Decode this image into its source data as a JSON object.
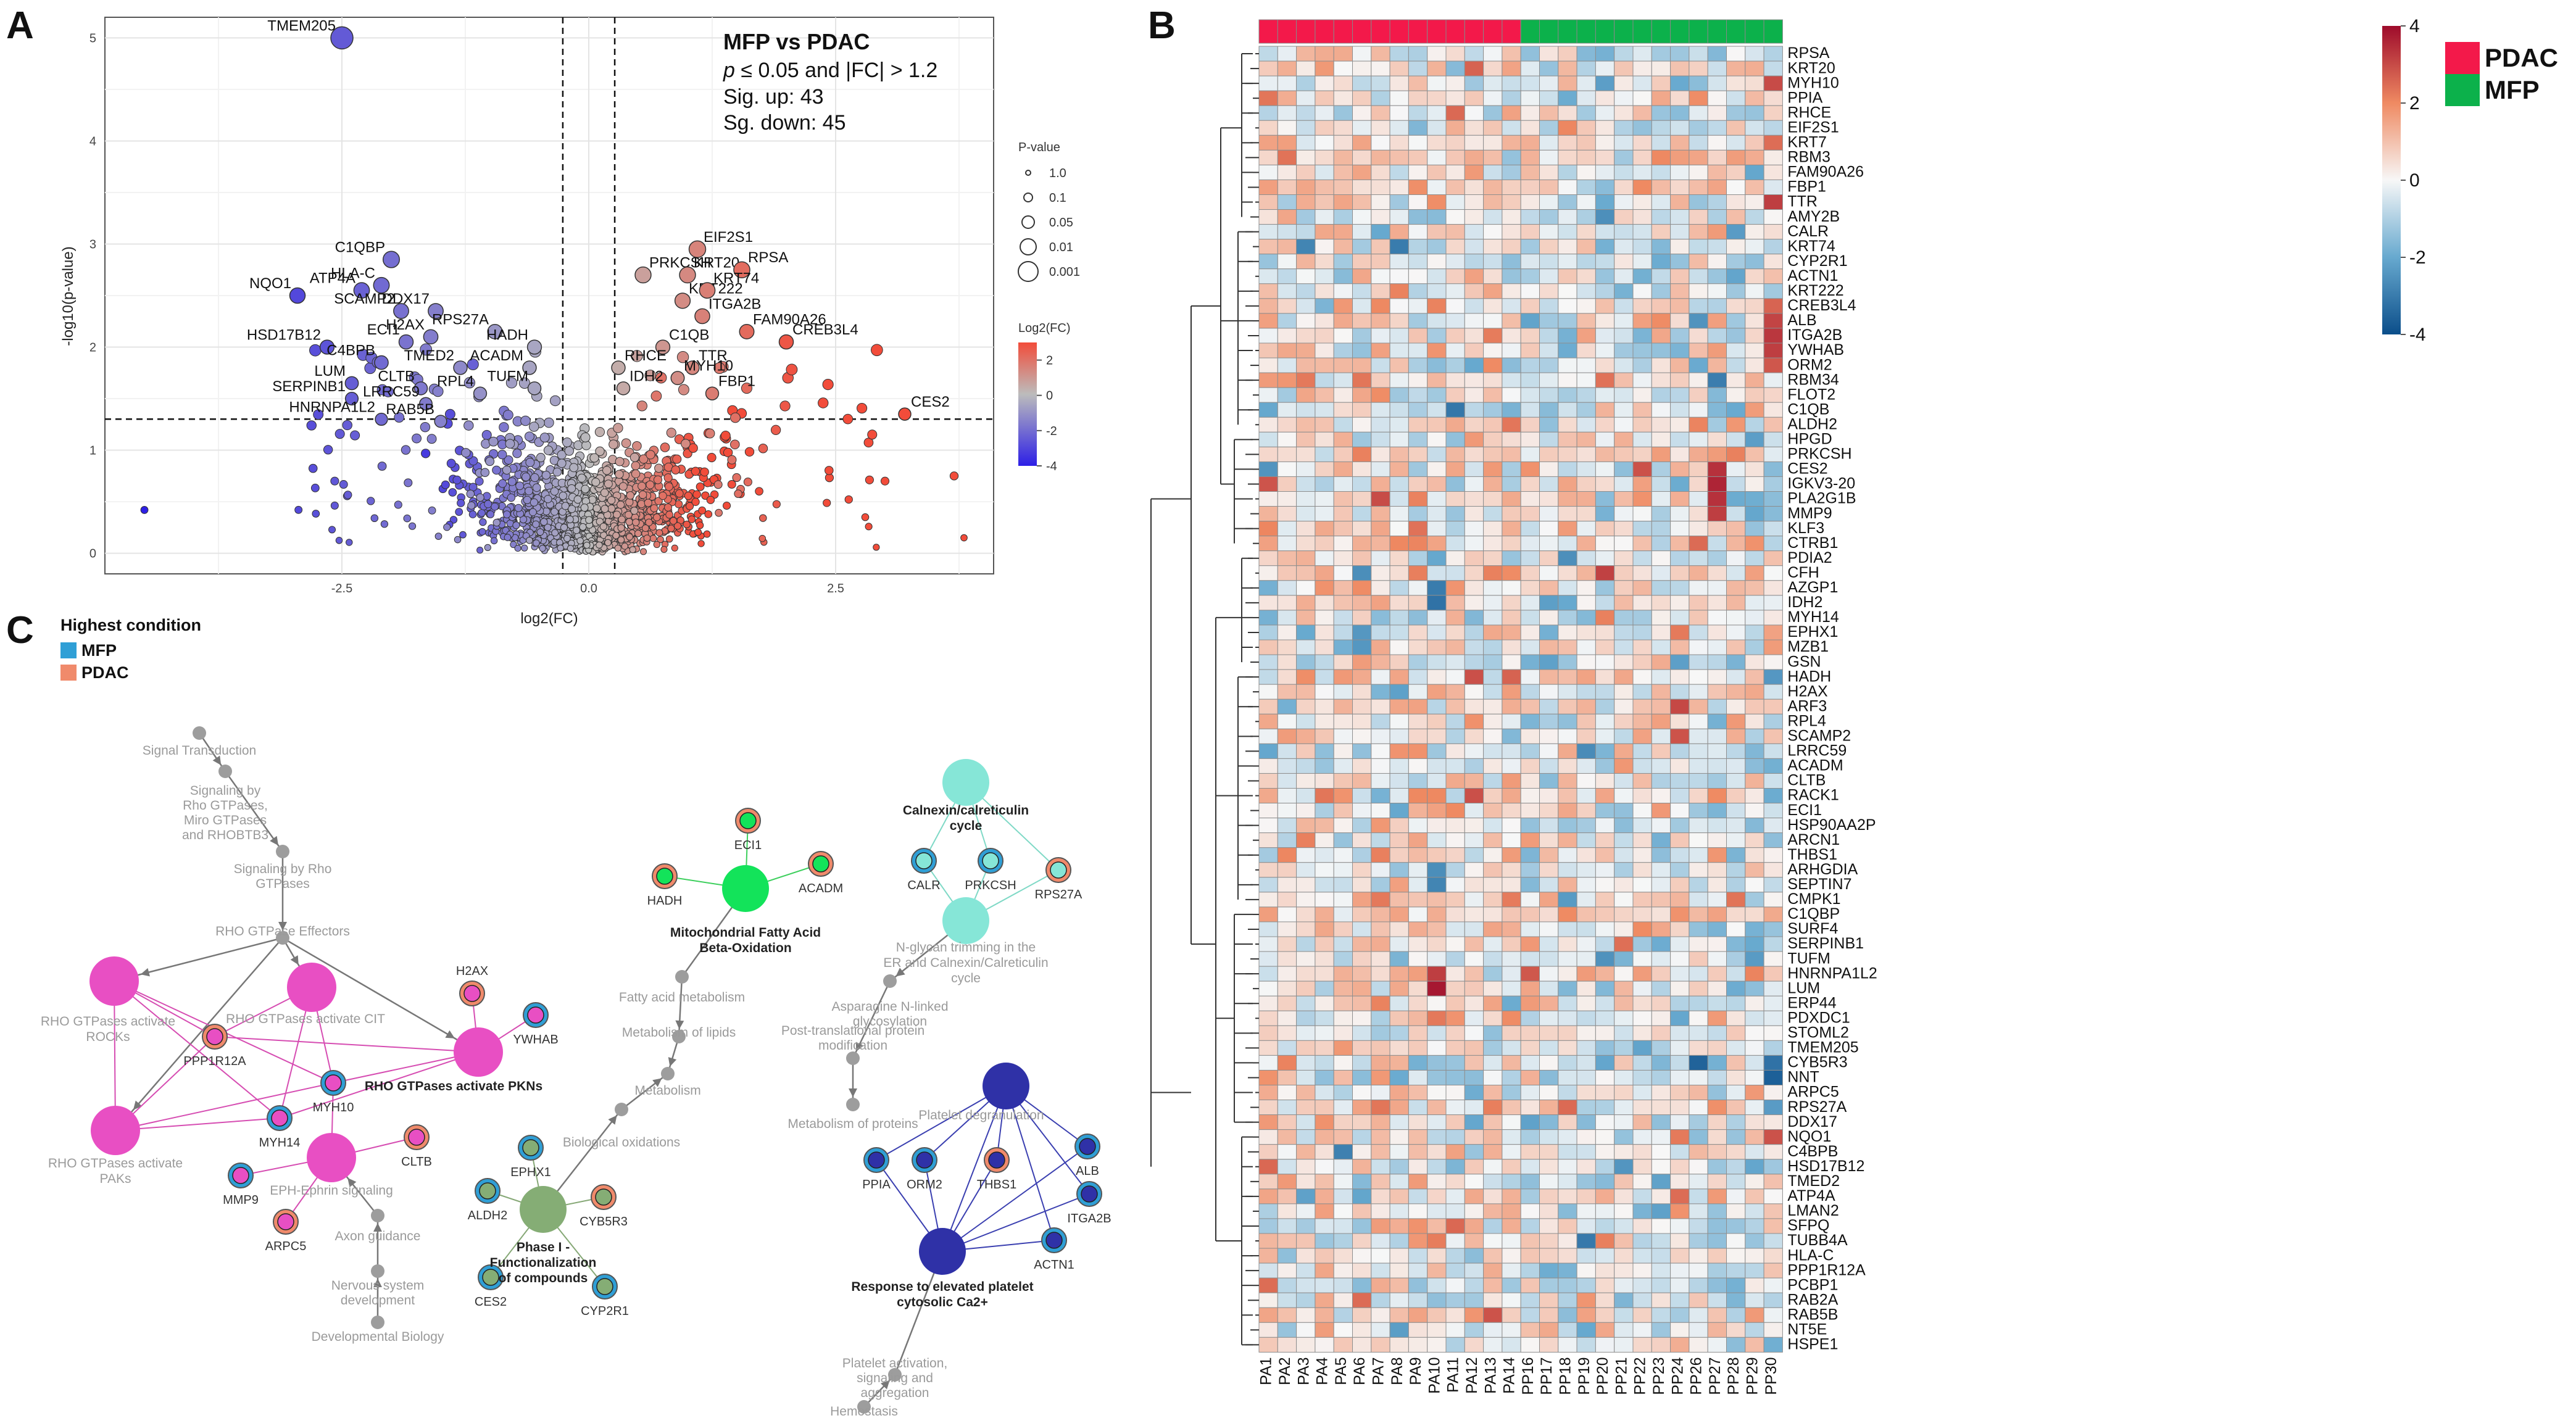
{
  "panels": {
    "a": "A",
    "b": "B",
    "c": "C"
  },
  "colors": {
    "pdac": "#f3194a",
    "mfp": "#0cb14b",
    "hm_low": "#0b4e8a",
    "hm_mid": "#f7f7f7",
    "hm_high": "#9e0b2b",
    "lfc_low": "#2d1fe6",
    "lfc_mid": "#bcbcbc",
    "lfc_high": "#f24c3a",
    "net_rho": "#e84fc3",
    "net_fao": "#13e35a",
    "net_calnexin": "#86e6d7",
    "net_phase1": "#85ad75",
    "net_platelet": "#2f31a7",
    "net_path": "#9d9d9d",
    "cond_mfp": "#2f9fd6",
    "cond_pdac": "#f08a6b"
  },
  "chart_data": [
    {
      "id": "volcano",
      "type": "scatter",
      "title": "MFP vs PDAC",
      "xlabel": "log2(FC)",
      "ylabel": "-log10(p-value)",
      "xlim": [
        -4.9,
        4.1
      ],
      "ylim": [
        -0.2,
        5.2
      ],
      "xticks": [
        "-2.5",
        "0.0",
        "2.5"
      ],
      "yticks": [
        "0",
        "1",
        "2",
        "3",
        "4",
        "5"
      ],
      "xtick_values": [
        -2.5,
        0,
        2.5
      ],
      "ytick_values": [
        0,
        1,
        2,
        3,
        4,
        5
      ],
      "threshold_text": {
        "prefix": "p",
        "rest": " ≤ 0.05 and |FC| > 1.2"
      },
      "sig_up": "Sig. up: 43",
      "sig_down": "Sg. down: 45",
      "thresholds": {
        "fc": 0.263,
        "p": 1.301
      },
      "pvalue_legend": {
        "title": "P-value",
        "labels": [
          "1.0",
          "0.1",
          "0.05",
          "0.01",
          "0.001"
        ]
      },
      "lfc_legend": {
        "title": "Log2(FC)",
        "labels": [
          "2",
          "0",
          "-2",
          "-4"
        ],
        "values": [
          2,
          0,
          -2,
          -4
        ]
      },
      "points": [
        {
          "label": "TMEM205",
          "x": -2.5,
          "y": 5.0
        },
        {
          "label": "C1QBP",
          "x": -2.0,
          "y": 2.85
        },
        {
          "label": "HLA-C",
          "x": -2.1,
          "y": 2.6
        },
        {
          "label": "NQO1",
          "x": -2.95,
          "y": 2.5
        },
        {
          "label": "ATP4A",
          "x": -2.3,
          "y": 2.55
        },
        {
          "label": "SCAMP2",
          "x": -1.9,
          "y": 2.35
        },
        {
          "label": "DDX17",
          "x": -1.55,
          "y": 2.35
        },
        {
          "label": "H2AX",
          "x": -1.6,
          "y": 2.1
        },
        {
          "label": "RPS27A",
          "x": -0.95,
          "y": 2.15
        },
        {
          "label": "HADH",
          "x": -0.55,
          "y": 2.0
        },
        {
          "label": "ECI1",
          "x": -1.85,
          "y": 2.05
        },
        {
          "label": "HSD17B12",
          "x": -2.65,
          "y": 2.0
        },
        {
          "label": "C4BPB",
          "x": -2.1,
          "y": 1.85
        },
        {
          "label": "TMED2",
          "x": -1.3,
          "y": 1.8
        },
        {
          "label": "ACADM",
          "x": -0.6,
          "y": 1.8
        },
        {
          "label": "LUM",
          "x": -2.4,
          "y": 1.65
        },
        {
          "label": "CLTB",
          "x": -1.7,
          "y": 1.6
        },
        {
          "label": "RPL4",
          "x": -1.1,
          "y": 1.55
        },
        {
          "label": "TUFM",
          "x": -0.55,
          "y": 1.6
        },
        {
          "label": "SERPINB1",
          "x": -2.4,
          "y": 1.5
        },
        {
          "label": "LRRC59",
          "x": -1.65,
          "y": 1.45
        },
        {
          "label": "HNRNPA1L2",
          "x": -2.1,
          "y": 1.3
        },
        {
          "label": "RAB5B",
          "x": -1.5,
          "y": 1.28
        },
        {
          "label": "EIF2S1",
          "x": 1.1,
          "y": 2.95
        },
        {
          "label": "PRKCSH",
          "x": 0.55,
          "y": 2.7
        },
        {
          "label": "KRT20",
          "x": 1.0,
          "y": 2.7
        },
        {
          "label": "RPSA",
          "x": 1.55,
          "y": 2.75
        },
        {
          "label": "KRT222",
          "x": 0.95,
          "y": 2.45
        },
        {
          "label": "KRT74",
          "x": 1.2,
          "y": 2.55
        },
        {
          "label": "ITGA2B",
          "x": 1.15,
          "y": 2.3
        },
        {
          "label": "FAM90A26",
          "x": 1.6,
          "y": 2.15
        },
        {
          "label": "CREB3L4",
          "x": 2.0,
          "y": 2.05
        },
        {
          "label": "C1QB",
          "x": 0.75,
          "y": 2.0
        },
        {
          "label": "RHCE",
          "x": 0.3,
          "y": 1.8
        },
        {
          "label": "TTR",
          "x": 1.05,
          "y": 1.8
        },
        {
          "label": "IDH2",
          "x": 0.35,
          "y": 1.6
        },
        {
          "label": "MYH10",
          "x": 0.9,
          "y": 1.7
        },
        {
          "label": "FBP1",
          "x": 1.25,
          "y": 1.55
        },
        {
          "label": "CES2",
          "x": 3.2,
          "y": 1.35
        }
      ]
    },
    {
      "id": "heatmap",
      "type": "heatmap",
      "columns": [
        "PA1",
        "PA2",
        "PA3",
        "PA4",
        "PA5",
        "PA6",
        "PA7",
        "PA8",
        "PA9",
        "PA10",
        "PA11",
        "PA12",
        "PA13",
        "PA14",
        "PP16",
        "PP17",
        "PP18",
        "PP19",
        "PP20",
        "PP21",
        "PP22",
        "PP23",
        "PP24",
        "PP26",
        "PP27",
        "PP28",
        "PP29",
        "PP30"
      ],
      "column_groups": [
        "PDAC",
        "PDAC",
        "PDAC",
        "PDAC",
        "PDAC",
        "PDAC",
        "PDAC",
        "PDAC",
        "PDAC",
        "PDAC",
        "PDAC",
        "PDAC",
        "PDAC",
        "PDAC",
        "MFP",
        "MFP",
        "MFP",
        "MFP",
        "MFP",
        "MFP",
        "MFP",
        "MFP",
        "MFP",
        "MFP",
        "MFP",
        "MFP",
        "MFP",
        "MFP"
      ],
      "rows": [
        "RPSA",
        "KRT20",
        "MYH10",
        "PPIA",
        "RHCE",
        "EIF2S1",
        "KRT7",
        "RBM3",
        "FAM90A26",
        "FBP1",
        "TTR",
        "AMY2B",
        "CALR",
        "KRT74",
        "CYP2R1",
        "ACTN1",
        "KRT222",
        "CREB3L4",
        "ALB",
        "ITGA2B",
        "YWHAB",
        "ORM2",
        "RBM34",
        "FLOT2",
        "C1QB",
        "ALDH2",
        "HPGD",
        "PRKCSH",
        "CES2",
        "IGKV3-20",
        "PLA2G1B",
        "MMP9",
        "KLF3",
        "CTRB1",
        "PDIA2",
        "CFH",
        "AZGP1",
        "IDH2",
        "MYH14",
        "EPHX1",
        "MZB1",
        "GSN",
        "HADH",
        "H2AX",
        "ARF3",
        "RPL4",
        "SCAMP2",
        "LRRC59",
        "ACADM",
        "CLTB",
        "RACK1",
        "ECI1",
        "HSP90AA2P",
        "ARCN1",
        "THBS1",
        "ARHGDIA",
        "SEPTIN7",
        "CMPK1",
        "C1QBP",
        "SURF4",
        "SERPINB1",
        "TUFM",
        "HNRNPA1L2",
        "LUM",
        "ERP44",
        "PDXDC1",
        "STOML2",
        "TMEM205",
        "CYB5R3",
        "NNT",
        "ARPC5",
        "RPS27A",
        "DDX17",
        "NQO1",
        "C4BPB",
        "HSD17B12",
        "TMED2",
        "ATP4A",
        "LMAN2",
        "SFPQ",
        "TUBB4A",
        "HLA-C",
        "PPP1R12A",
        "PCBP1",
        "RAB2A",
        "RAB5B",
        "NT5E",
        "HSPE1"
      ],
      "scale": {
        "min": -4,
        "max": 4,
        "ticks": [
          "4",
          "2",
          "0",
          "-2",
          "-4"
        ],
        "tick_values": [
          4,
          2,
          0,
          -2,
          -4
        ]
      },
      "group_legend": [
        "PDAC",
        "MFP"
      ],
      "seed": 20240611
    },
    {
      "id": "network",
      "type": "network",
      "legend_title": "Highest condition",
      "legend_items": [
        "MFP",
        "PDAC"
      ],
      "path_labels": {
        "signal": "Signal Transduction",
        "rhogtp": "Signaling by Rho GTPases, Miro GTPases and RHOBTB3",
        "sigrho": "Signaling by Rho GTPases",
        "effectors": "RHO GTPase Effectors",
        "eph": "EPH-Ephrin signaling",
        "axon": "Axon guidance",
        "nervous": "Nervous system development",
        "devbio": "Developmental Biology",
        "fattyacid": "Fatty acid metabolism",
        "lipids": "Metabolism of lipids",
        "metab": "Metabolism",
        "bioox": "Biological oxidations",
        "nglycan": "N-glycan trimming in the ER and Calnexin/Calreticulin cycle",
        "asn": "Asparagine N-linked glycosylation",
        "ptm": "Post-translational protein modification",
        "metprot": "Metabolism of proteins",
        "platagg": "Platelet degranulation",
        "platact": "Platelet activation, signaling and aggregation",
        "hemostasis": "Hemostasis",
        "rock": "RHO GTPases activate ROCKs",
        "cit": "RHO GTPases activate CIT",
        "pak": "RHO GTPases activate PAKs"
      },
      "key_terms": {
        "pkn": "RHO GTPases activate PKNs",
        "fao": "Mitochondrial Fatty Acid Beta-Oxidation",
        "calnexin": "Calnexin/calreticulin cycle",
        "phase1": "Phase I - Functionalization of compounds",
        "platelet": "Response to elevated platelet cytosolic Ca2+"
      },
      "genes": {
        "ppp1r12a": "PPP1R12A",
        "myh10": "MYH10",
        "myh14": "MYH14",
        "mmp9": "MMP9",
        "arpc5": "ARPC5",
        "cltb": "CLTB",
        "h2ax": "H2AX",
        "ywhab": "YWHAB",
        "eci1": "ECI1",
        "hadh": "HADH",
        "acadm": "ACADM",
        "calr": "CALR",
        "prkcsh": "PRKCSH",
        "rps27a": "RPS27A",
        "ephx1": "EPHX1",
        "aldh2": "ALDH2",
        "cyb5r3": "CYB5R3",
        "ces2": "CES2",
        "cyp2r1": "CYP2R1",
        "ppia": "PPIA",
        "orm2": "ORM2",
        "thbs1": "THBS1",
        "alb": "ALB",
        "itga2b": "ITGA2B",
        "actn1": "ACTN1"
      }
    }
  ]
}
